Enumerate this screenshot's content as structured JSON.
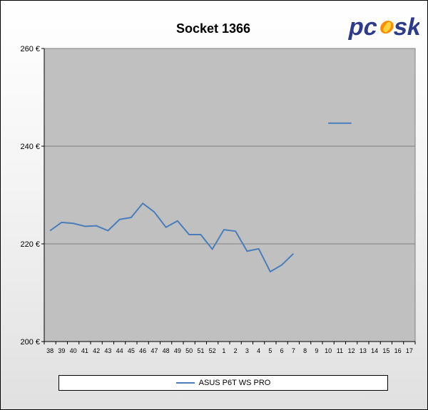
{
  "chart_data": {
    "type": "line",
    "title": "Socket 1366",
    "xlabel": "",
    "ylabel": "",
    "ylim": [
      200,
      260
    ],
    "y_ticks": [
      "200 €",
      "220 €",
      "240 €",
      "260 €"
    ],
    "y_tick_values": [
      200,
      220,
      240,
      260
    ],
    "categories": [
      "38",
      "39",
      "40",
      "41",
      "42",
      "43",
      "44",
      "45",
      "46",
      "47",
      "48",
      "49",
      "50",
      "51",
      "52",
      "1",
      "2",
      "3",
      "4",
      "5",
      "6",
      "7",
      "8",
      "9",
      "10",
      "11",
      "12",
      "13",
      "14",
      "15",
      "16",
      "17"
    ],
    "series": [
      {
        "name": "ASUS P6T WS PRO",
        "color": "#4a7ebb",
        "values": [
          222.7,
          224.4,
          224.2,
          223.6,
          223.7,
          222.7,
          225.0,
          225.4,
          228.3,
          226.5,
          223.4,
          224.7,
          221.9,
          221.9,
          218.9,
          222.9,
          222.6,
          218.5,
          219.0,
          214.3,
          215.7,
          218.0,
          null,
          null,
          244.7,
          244.7,
          244.7,
          null,
          null,
          null,
          null,
          null
        ]
      }
    ],
    "grid": true,
    "legend_position": "bottom",
    "plot_background": "#c0c0c0"
  },
  "logo": {
    "text": "pcssk",
    "primary_color": "#2e3a8c",
    "accent_color": "#ff8a00"
  }
}
